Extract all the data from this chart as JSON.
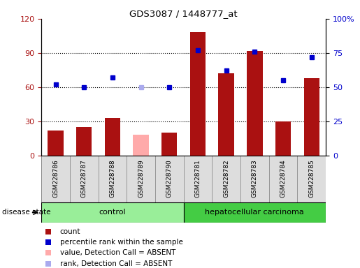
{
  "title": "GDS3087 / 1448777_at",
  "samples": [
    "GSM228786",
    "GSM228787",
    "GSM228788",
    "GSM228789",
    "GSM228790",
    "GSM228781",
    "GSM228782",
    "GSM228783",
    "GSM228784",
    "GSM228785"
  ],
  "bar_values": [
    22,
    25,
    33,
    null,
    20,
    108,
    72,
    92,
    30,
    68
  ],
  "bar_absent_values": [
    null,
    null,
    null,
    18,
    null,
    null,
    null,
    null,
    null,
    null
  ],
  "percentile_values": [
    52,
    50,
    57,
    null,
    50,
    77,
    62,
    76,
    55,
    72
  ],
  "percentile_absent_values": [
    null,
    null,
    null,
    50,
    null,
    null,
    null,
    null,
    null,
    null
  ],
  "bar_color": "#aa1111",
  "bar_absent_color": "#ffaaaa",
  "percentile_color": "#0000cc",
  "percentile_absent_color": "#aaaaee",
  "left_yticks": [
    0,
    30,
    60,
    90,
    120
  ],
  "right_yticks_vals": [
    0,
    25,
    50,
    75,
    100
  ],
  "right_ytick_labels": [
    "0",
    "25",
    "50",
    "75",
    "100%"
  ],
  "control_label": "control",
  "cancer_label": "hepatocellular carcinoma",
  "disease_state_label": "disease state",
  "legend_items": [
    {
      "label": "count",
      "color": "#aa1111"
    },
    {
      "label": "percentile rank within the sample",
      "color": "#0000cc"
    },
    {
      "label": "value, Detection Call = ABSENT",
      "color": "#ffaaaa"
    },
    {
      "label": "rank, Detection Call = ABSENT",
      "color": "#aaaaee"
    }
  ]
}
